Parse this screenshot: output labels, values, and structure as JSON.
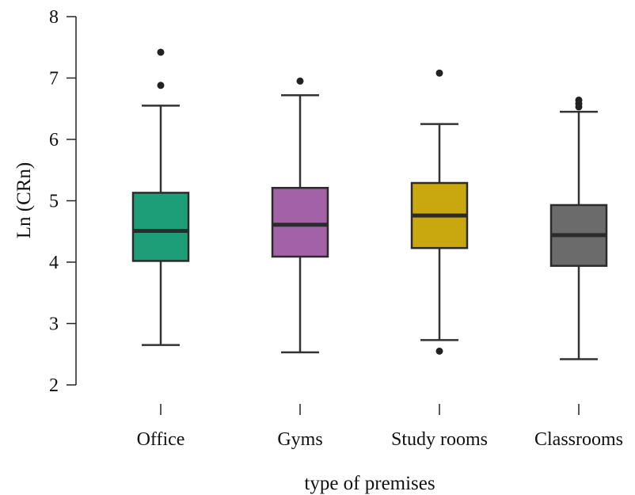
{
  "chart_data": {
    "type": "box",
    "title": "",
    "xlabel": "type of premises",
    "ylabel": "Ln (CRn)",
    "ylim": [
      2,
      8
    ],
    "yticks": [
      2,
      3,
      4,
      5,
      6,
      7,
      8
    ],
    "grid": false,
    "legend": "none",
    "categories": [
      "Office",
      "Gyms",
      "Study rooms",
      "Classrooms"
    ],
    "boxes": [
      {
        "category": "Office",
        "whisker_low": 2.65,
        "q1": 4.02,
        "median": 4.51,
        "q3": 5.13,
        "whisker_high": 6.55,
        "outliers": [
          6.88,
          7.42
        ],
        "color": "#1e9e78"
      },
      {
        "category": "Gyms",
        "whisker_low": 2.53,
        "q1": 4.09,
        "median": 4.61,
        "q3": 5.21,
        "whisker_high": 6.72,
        "outliers": [
          6.95
        ],
        "color": "#a361a7"
      },
      {
        "category": "Study rooms",
        "whisker_low": 2.73,
        "q1": 4.23,
        "median": 4.76,
        "q3": 5.29,
        "whisker_high": 6.25,
        "outliers": [
          2.55,
          7.08
        ],
        "color": "#c9a70e"
      },
      {
        "category": "Classrooms",
        "whisker_low": 2.42,
        "q1": 3.94,
        "median": 4.44,
        "q3": 4.93,
        "whisker_high": 6.45,
        "outliers": [
          6.53,
          6.58,
          6.64
        ],
        "color": "#6b6b6b"
      }
    ]
  }
}
